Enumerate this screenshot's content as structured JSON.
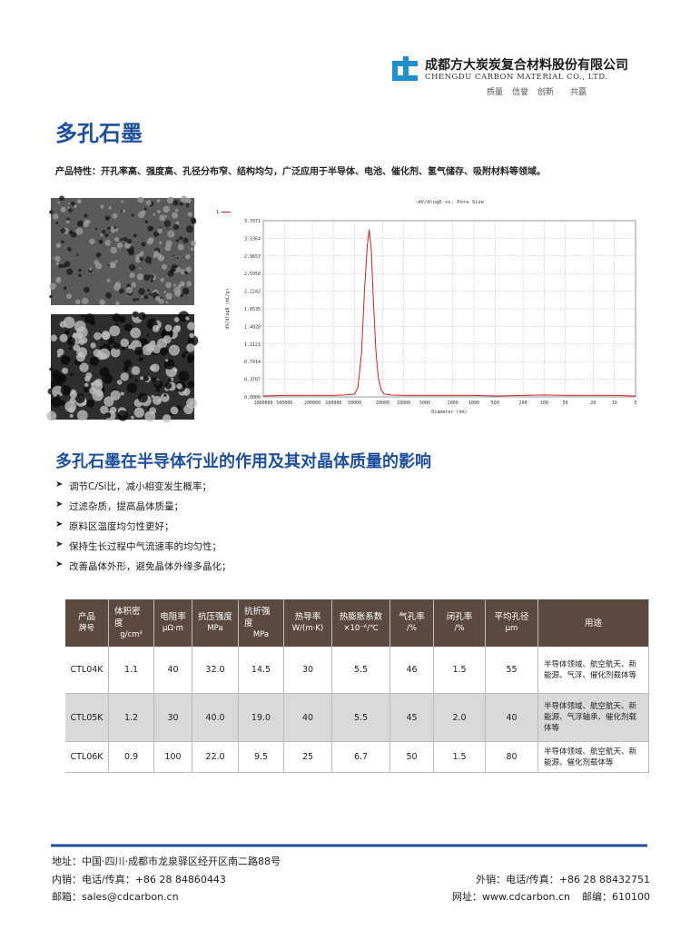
{
  "header": {
    "company_cn": "成都方大炭炭复合材料股份有限公司",
    "company_en": "CHENGDU CARBON MATERIAL CO., LTD.",
    "slogan": [
      "质量",
      "信誉",
      "创新",
      "共赢"
    ]
  },
  "title": "多孔石墨",
  "feature": "产品特性：开孔率高、强度高、孔径分布窄、结构均匀，广泛应用于半导体、电池、催化剂、氢气储存、吸附材料等领域。",
  "chart_data": {
    "type": "line",
    "title": "-dV/dlogD vs. Pore Size",
    "x_label": "Diameter (nm)",
    "y_label": "dV/dlogD (mL/g)",
    "x": [
      1000000,
      500000,
      200000,
      100000,
      70000,
      50000,
      45000,
      40000,
      36000,
      33000,
      31000,
      29000,
      27000,
      25000,
      23000,
      21000,
      19000,
      15000,
      10000,
      5000,
      2000,
      1000,
      500,
      200,
      100,
      50,
      20,
      10,
      5
    ],
    "series": [
      {
        "name": "1",
        "color": "#d42020",
        "values": [
          0.02,
          0.03,
          0.03,
          0.03,
          0.04,
          0.06,
          0.2,
          0.9,
          2.3,
          3.2,
          3.52,
          3.1,
          2.0,
          1.0,
          0.4,
          0.15,
          0.06,
          0.04,
          0.03,
          0.03,
          0.03,
          0.03,
          0.02,
          0.03,
          0.04,
          0.03,
          0.03,
          0.03,
          0.02
        ]
      }
    ],
    "xlim": [
      1000000,
      5
    ],
    "x_log": true,
    "xticks": [
      1000000,
      500000,
      200000,
      100000,
      50000,
      20000,
      10000,
      5000,
      2000,
      1000,
      500,
      200,
      100,
      50,
      20,
      10,
      5
    ],
    "ylim": [
      0,
      3.7071
    ],
    "yticks": [
      {
        "value": 0,
        "label": "0.0000"
      },
      0.3707,
      0.7414,
      1.1121,
      1.4828,
      1.8535,
      2.2242,
      {
        "value": 2.595,
        "label": "2.5950"
      },
      2.9657,
      3.3364,
      3.7071
    ],
    "grid": true
  },
  "section_title": "多孔石墨在半导体行业的作用及其对晶体质量的影响",
  "bullets": [
    "调节C/Si比，减小相变发生概率；",
    "过滤杂质，提高晶体质量；",
    "原料区温度均匀性更好；",
    "保持生长过程中气流速率的均匀性；",
    "改善晶体外形，避免晶体外缘多晶化；"
  ],
  "table": {
    "columns": [
      [
        "产品",
        "牌号"
      ],
      [
        "体积密度",
        "g/cm³"
      ],
      [
        "电阻率",
        "μΩ·m"
      ],
      [
        "抗压强度",
        "MPa"
      ],
      [
        "抗折强度",
        "MPa"
      ],
      [
        "热导率",
        "W/(m·K)"
      ],
      [
        "热膨胀系数",
        "×10⁻⁶/℃"
      ],
      [
        "气孔率",
        "/%"
      ],
      [
        "闭孔率",
        "/%"
      ],
      [
        "平均孔径",
        "μm"
      ],
      [
        "用途"
      ]
    ],
    "rows": [
      [
        "CTL04K",
        "1.1",
        "40",
        "32.0",
        "14.5",
        "30",
        "5.5",
        "46",
        "1.5",
        "55",
        "半导体领域、航空航天、新能源、气浮、催化剂载体等"
      ],
      [
        "CTL05K",
        "1.2",
        "30",
        "40.0",
        "19.0",
        "40",
        "5.5",
        "45",
        "2.0",
        "40",
        "半导体领域、航空航天、新能源、气浮轴承、催化剂载体等"
      ],
      [
        "CTL06K",
        "0.9",
        "100",
        "22.0",
        "9.5",
        "25",
        "6.7",
        "50",
        "1.5",
        "80",
        "半导体领域、航空航天、新能源、催化剂载体等"
      ]
    ]
  },
  "footer": {
    "address": "地址：中国·四川·成都市龙泉驿区经开区南二路88号",
    "domestic": "内销：电话/传真：+86 28 84860443",
    "export": "外销：电话/传真：+86 28 88432751",
    "email": "邮箱：sales@cdcarbon.cn",
    "website": "网址：www.cdcarbon.cn",
    "postcode": "邮编：610100"
  }
}
